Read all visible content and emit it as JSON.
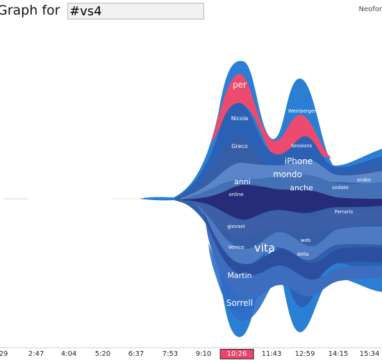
{
  "header": {
    "title": "Graph for",
    "search_value": "#vs4",
    "brand": "Neofor"
  },
  "colors": {
    "accent": "#e8456a",
    "primary": "#2a7fd4",
    "deep": "#2b3a86"
  },
  "timeline": {
    "ticks": [
      "29",
      "2:47",
      "4:04",
      "5:20",
      "6:37",
      "7:53",
      "9:10",
      "10:26",
      "11:43",
      "12:59",
      "14:15",
      "15:34"
    ],
    "active_tick": "10:26"
  },
  "stream_labels": [
    "per",
    "Nicola",
    "Weinberger",
    "Greco",
    "Sessions",
    "iPhone",
    "mondo",
    "anni",
    "arabo",
    "online",
    "anche",
    "sodate",
    "Ferraris",
    "giovani",
    "web",
    "Venice",
    "vita",
    "della",
    "Martin",
    "Sorrell"
  ]
}
